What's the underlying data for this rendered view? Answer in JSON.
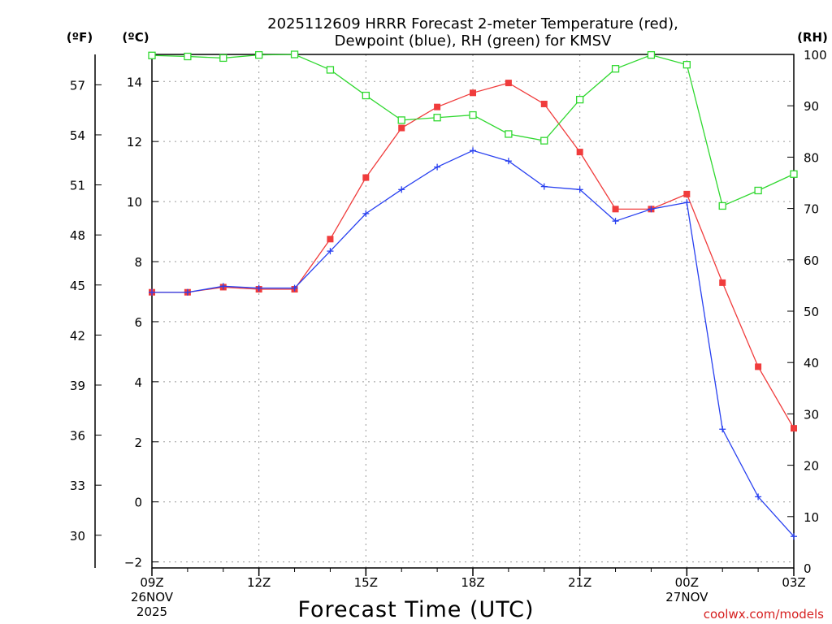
{
  "chart_data": {
    "type": "line",
    "title_lines": [
      "2025112609 HRRR Forecast 2-meter Temperature (red),",
      "Dewpoint (blue), RH (green) for KMSV"
    ],
    "xlabel": "Forecast Time (UTC)",
    "credit": "coolwx.com/models",
    "x_hours": [
      9,
      10,
      11,
      12,
      13,
      14,
      15,
      16,
      17,
      18,
      19,
      20,
      21,
      22,
      23,
      24,
      25,
      26,
      27
    ],
    "x_ticks": [
      {
        "hour": 9,
        "lines": [
          "09Z",
          "26NOV",
          "2025"
        ]
      },
      {
        "hour": 12,
        "lines": [
          "12Z"
        ]
      },
      {
        "hour": 15,
        "lines": [
          "15Z"
        ]
      },
      {
        "hour": 18,
        "lines": [
          "18Z"
        ]
      },
      {
        "hour": 21,
        "lines": [
          "21Z"
        ]
      },
      {
        "hour": 24,
        "lines": [
          "00Z",
          "27NOV"
        ]
      },
      {
        "hour": 27,
        "lines": [
          "03Z"
        ]
      }
    ],
    "xlim": [
      9,
      27
    ],
    "left_axis_c": {
      "unit_label": "(ºC)",
      "range": [
        -2.2,
        14.9
      ],
      "ticks": [
        -2,
        0,
        2,
        4,
        6,
        8,
        10,
        12,
        14
      ],
      "tick_labels": [
        "−2",
        "0",
        "2",
        "4",
        "6",
        "8",
        "10",
        "12",
        "14"
      ]
    },
    "left_axis_f": {
      "unit_label": "(ºF)",
      "ticks": [
        30,
        33,
        36,
        39,
        42,
        45,
        48,
        51,
        54,
        57
      ],
      "tick_labels": [
        "30",
        "33",
        "36",
        "39",
        "42",
        "45",
        "48",
        "51",
        "54",
        "57"
      ]
    },
    "right_axis_rh": {
      "unit_label": "(RH)",
      "range": [
        0,
        100
      ],
      "ticks": [
        0,
        10,
        20,
        30,
        40,
        50,
        60,
        70,
        80,
        90,
        100
      ],
      "tick_labels": [
        "0",
        "10",
        "20",
        "30",
        "40",
        "50",
        "60",
        "70",
        "80",
        "90",
        "100"
      ]
    },
    "grid": true,
    "series": [
      {
        "name": "Temperature",
        "axis": "C",
        "color": "#f03c3c",
        "marker": "filled-square",
        "values": [
          6.98,
          6.98,
          7.15,
          7.08,
          7.08,
          8.75,
          10.8,
          12.45,
          13.15,
          13.62,
          13.95,
          13.25,
          11.65,
          9.75,
          9.75,
          10.25,
          7.3,
          4.5,
          2.45
        ]
      },
      {
        "name": "Dewpoint",
        "axis": "C",
        "color": "#2840f0",
        "marker": "plus",
        "values": [
          6.98,
          6.98,
          7.18,
          7.12,
          7.12,
          8.35,
          9.6,
          10.4,
          11.15,
          11.7,
          11.35,
          10.5,
          10.4,
          9.35,
          9.75,
          9.97,
          2.42,
          0.17,
          -1.15
        ]
      },
      {
        "name": "RH",
        "axis": "RH",
        "color": "#30d830",
        "marker": "open-square",
        "values": [
          99.8,
          99.6,
          99.3,
          99.9,
          100,
          97,
          92,
          87.2,
          87.7,
          88.2,
          84.5,
          83.2,
          91.2,
          97.2,
          99.9,
          98,
          70.5,
          73.5,
          76.7
        ]
      }
    ]
  }
}
